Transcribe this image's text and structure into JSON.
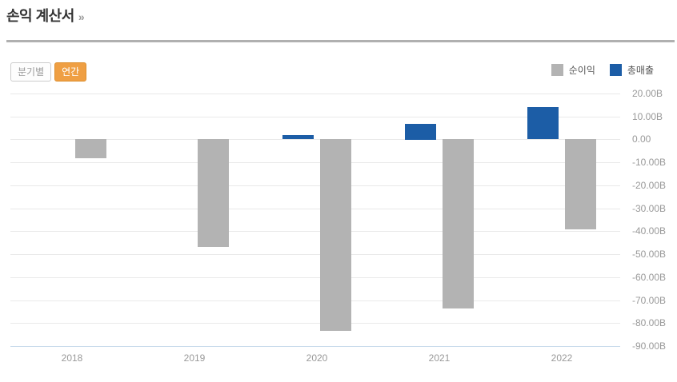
{
  "header": {
    "title": "손익 계산서",
    "more_link": "»"
  },
  "controls": {
    "quarterly_label": "분기별",
    "annual_label": "연간",
    "active": "연간"
  },
  "legend": [
    {
      "label": "순이익",
      "color": "#b3b3b3"
    },
    {
      "label": "총매출",
      "color": "#1c5da6"
    }
  ],
  "colors": {
    "accent_orange": "#ef9f43",
    "accent_orange_border": "#dd8f2f",
    "bar_gray": "#b3b3b3",
    "bar_blue": "#1c5da6",
    "grid": "#e9e9e9",
    "axis_baseline": "#c5d9ea"
  },
  "chart_data": {
    "type": "bar",
    "title": "손익 계산서 (연간)",
    "categories": [
      "2018",
      "2019",
      "2020",
      "2021",
      "2022"
    ],
    "series": [
      {
        "name": "총매출",
        "color": "#1c5da6",
        "values": [
          0,
          0,
          1.9,
          6.8,
          14.0
        ]
      },
      {
        "name": "순이익",
        "color": "#b3b3b3",
        "values": [
          -8.5,
          -47.0,
          -83.5,
          -73.7,
          -39.3
        ]
      }
    ],
    "unit": "B",
    "ylim": [
      -90,
      20
    ],
    "ytick_step": 10,
    "ytick_labels": [
      "20.00B",
      "10.00B",
      "0.00",
      "-10.00B",
      "-20.00B",
      "-30.00B",
      "-40.00B",
      "-50.00B",
      "-60.00B",
      "-70.00B",
      "-80.00B",
      "-90.00B"
    ],
    "grid": true,
    "legend_position": "top-right",
    "yaxis_side": "right"
  }
}
